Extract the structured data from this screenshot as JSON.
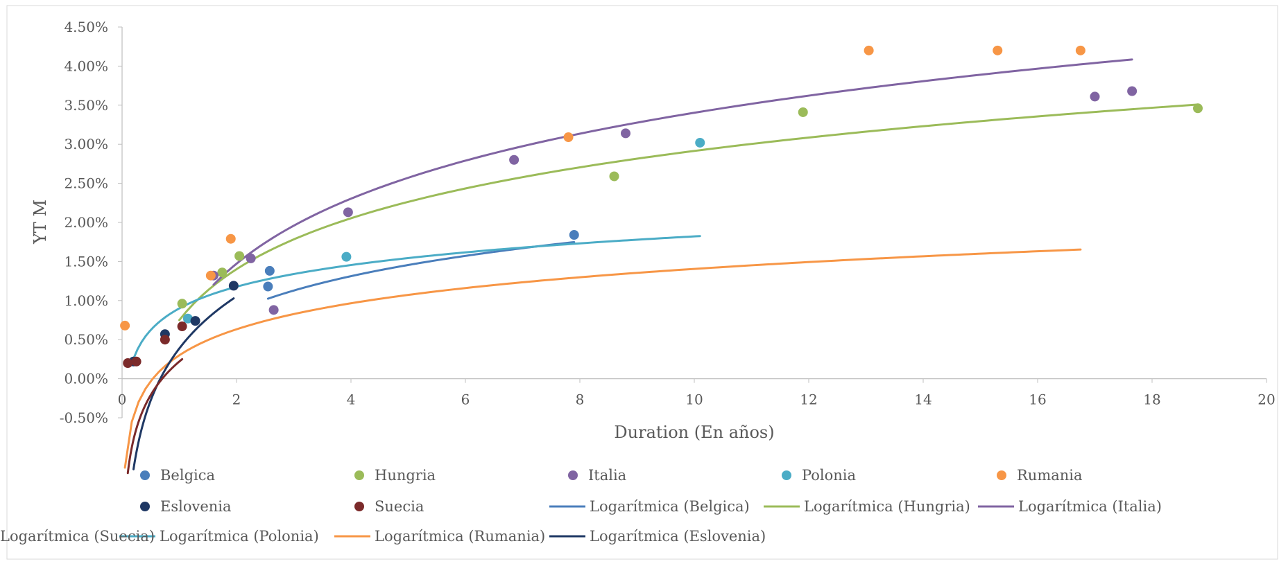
{
  "chart_data": {
    "type": "scatter",
    "title": "",
    "xlabel": "Duration (En años)",
    "ylabel": "YT M",
    "xlim": [
      0,
      20
    ],
    "ylim": [
      -0.5,
      4.5
    ],
    "x_ticks": [
      0,
      2,
      4,
      6,
      8,
      10,
      12,
      14,
      16,
      18,
      20
    ],
    "y_ticks": [
      -0.5,
      0,
      0.5,
      1,
      1.5,
      2,
      2.5,
      3,
      3.5,
      4,
      4.5
    ],
    "y_tick_labels": [
      "-0.50%",
      "0.00%",
      "0.50%",
      "1.00%",
      "1.50%",
      "2.00%",
      "2.50%",
      "3.00%",
      "3.50%",
      "4.00%",
      "4.50%"
    ],
    "grid": false,
    "legend_position": "bottom",
    "series": [
      {
        "name": "Belgica",
        "color": "#4a7ebb",
        "points": [
          [
            2.55,
            1.18
          ],
          [
            2.58,
            1.38
          ],
          [
            7.9,
            1.84
          ]
        ]
      },
      {
        "name": "Hungria",
        "color": "#9bbb59",
        "points": [
          [
            1.05,
            0.96
          ],
          [
            1.75,
            1.36
          ],
          [
            2.05,
            1.57
          ],
          [
            8.6,
            2.59
          ],
          [
            11.9,
            3.41
          ],
          [
            18.8,
            3.46
          ]
        ]
      },
      {
        "name": "Italia",
        "color": "#8064a2",
        "points": [
          [
            1.6,
            1.32
          ],
          [
            2.25,
            1.54
          ],
          [
            2.65,
            0.88
          ],
          [
            3.95,
            2.13
          ],
          [
            6.85,
            2.8
          ],
          [
            8.8,
            3.14
          ],
          [
            17.0,
            3.61
          ],
          [
            17.65,
            3.68
          ]
        ]
      },
      {
        "name": "Polonia",
        "color": "#4bacc6",
        "points": [
          [
            1.15,
            0.77
          ],
          [
            3.92,
            1.56
          ],
          [
            10.1,
            3.02
          ]
        ]
      },
      {
        "name": "Rumania",
        "color": "#f79646",
        "points": [
          [
            0.05,
            0.68
          ],
          [
            1.55,
            1.32
          ],
          [
            1.9,
            1.79
          ],
          [
            7.8,
            3.09
          ],
          [
            13.05,
            4.2
          ],
          [
            15.3,
            4.2
          ],
          [
            16.75,
            4.2
          ]
        ]
      },
      {
        "name": "Eslovenia",
        "color": "#1f3864",
        "points": [
          [
            0.2,
            0.22
          ],
          [
            0.75,
            0.57
          ],
          [
            1.28,
            0.74
          ],
          [
            1.95,
            1.19
          ]
        ]
      },
      {
        "name": "Suecia",
        "color": "#7b2a2a",
        "points": [
          [
            0.1,
            0.2
          ],
          [
            0.25,
            0.22
          ],
          [
            0.75,
            0.5
          ],
          [
            1.05,
            0.67
          ]
        ]
      }
    ],
    "trendlines": [
      {
        "name": "Logarítmica (Belgica)",
        "color": "#4a7ebb",
        "a": 0.64,
        "b": 0.425,
        "x_range": [
          2.55,
          7.9
        ]
      },
      {
        "name": "Logarítmica (Hungria)",
        "color": "#9bbb59",
        "a": 0.94,
        "b": 0.75,
        "x_range": [
          1.0,
          18.8
        ]
      },
      {
        "name": "Logarítmica (Italia)",
        "color": "#8064a2",
        "a": 1.2,
        "b": 0.64,
        "x_range": [
          1.6,
          17.65
        ]
      },
      {
        "name": "Logarítmica (Polonia)",
        "color": "#4bacc6",
        "a": 0.4,
        "b": 0.9,
        "x_range": [
          0.2,
          10.1
        ]
      },
      {
        "name": "Logarítmica (Rumania)",
        "color": "#f79646",
        "a": 0.48,
        "b": 0.3,
        "x_range": [
          0.05,
          16.75
        ]
      },
      {
        "name": "Logarítmica (Eslovenia)",
        "color": "#1f3864",
        "a": 0.96,
        "b": 0.387,
        "x_range": [
          0.2,
          1.95
        ]
      },
      {
        "name": "Logarítmica (Suecia)",
        "color": "#7b2a2a",
        "a": 0.62,
        "b": 0.22,
        "x_range": [
          0.1,
          1.05
        ]
      }
    ],
    "legend": [
      {
        "label": "Belgica",
        "kind": "marker",
        "color": "#4a7ebb"
      },
      {
        "label": "Hungria",
        "kind": "marker",
        "color": "#9bbb59"
      },
      {
        "label": "Italia",
        "kind": "marker",
        "color": "#8064a2"
      },
      {
        "label": "Polonia",
        "kind": "marker",
        "color": "#4bacc6"
      },
      {
        "label": "Rumania",
        "kind": "marker",
        "color": "#f79646"
      },
      {
        "label": "Eslovenia",
        "kind": "marker",
        "color": "#1f3864"
      },
      {
        "label": "Suecia",
        "kind": "marker",
        "color": "#7b2a2a"
      },
      {
        "label": "Logarítmica (Belgica)",
        "kind": "line",
        "color": "#4a7ebb"
      },
      {
        "label": "Logarítmica (Hungria)",
        "kind": "line",
        "color": "#9bbb59"
      },
      {
        "label": "Logarítmica (Italia)",
        "kind": "line",
        "color": "#8064a2"
      },
      {
        "label": "Logarítmica (Polonia)",
        "kind": "line",
        "color": "#4bacc6"
      },
      {
        "label": "Logarítmica (Rumania)",
        "kind": "line",
        "color": "#f79646"
      },
      {
        "label": "Logarítmica (Eslovenia)",
        "kind": "line",
        "color": "#1f3864"
      },
      {
        "label": "Logarítmica (Suecia)",
        "kind": "line",
        "color": "#7b2a2a"
      }
    ]
  }
}
